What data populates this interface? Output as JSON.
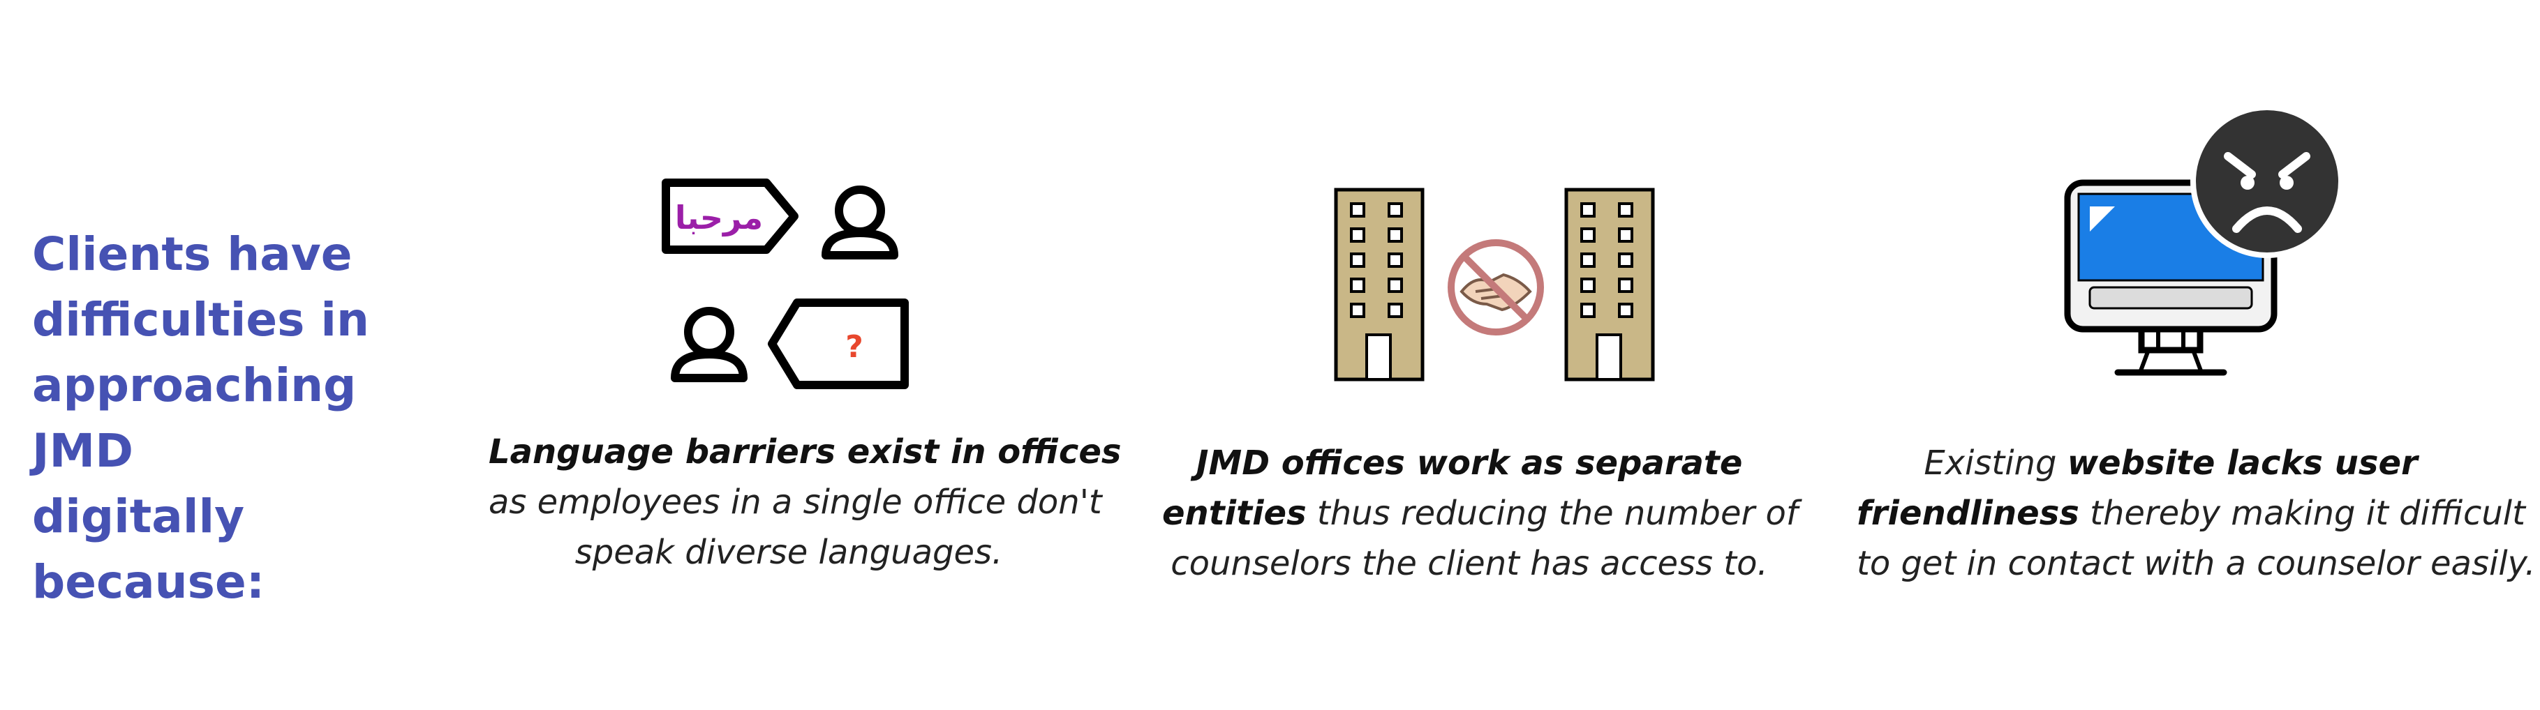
{
  "headline": {
    "line1": "Clients have",
    "line2": "difficulties in",
    "line3": "approaching JMD",
    "line4": "digitally because:"
  },
  "colors": {
    "headline": "#4652b3",
    "arabic_text": "#9b1fa8",
    "question_mark": "#e8472d",
    "building_fill": "#c9b787",
    "monitor_screen": "#1a7ee6",
    "angry_face_bg": "#333333"
  },
  "icons": {
    "card1": "language-barrier-icon",
    "card2": "separate-offices-icon",
    "card3": "angry-computer-icon"
  },
  "card1": {
    "bubble_text": "مرحبا",
    "question": "?",
    "bold": "Language barriers exist in offices",
    "line2": "as employees in a single office don't",
    "line3": "speak diverse languages."
  },
  "card2": {
    "bold1": "JMD offices work as separate",
    "bold2": "entities",
    "rest2": " thus reducing the number of",
    "line3": "counselors the client has access to."
  },
  "card3": {
    "pre1": "Existing ",
    "bold1": "website lacks user",
    "bold2": "friendliness",
    "rest2": " thereby making it difficult",
    "line3": "to get in contact with a counselor easily."
  }
}
